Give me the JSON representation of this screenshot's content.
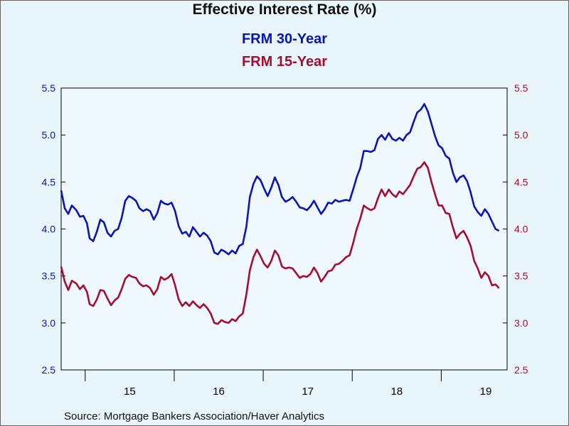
{
  "chart_data": {
    "type": "line",
    "title": "Effective Interest Rate (%)",
    "source": "Source:  Mortgage Bankers Association/Haver Analytics",
    "y_left": {
      "ylim": [
        2.5,
        5.5
      ],
      "ticks": [
        "2.5",
        "3.0",
        "3.5",
        "4.0",
        "4.5",
        "5.0",
        "5.5"
      ]
    },
    "y_right": {
      "ylim": [
        2.5,
        5.5
      ],
      "ticks": [
        "2.5",
        "3.0",
        "3.5",
        "4.0",
        "4.5",
        "5.0",
        "5.5"
      ]
    },
    "x_ticks": [
      {
        "label": "15",
        "x": 2015.5
      },
      {
        "label": "16",
        "x": 2016.5
      },
      {
        "label": "17",
        "x": 2017.5
      },
      {
        "label": "18",
        "x": 2018.5
      },
      {
        "label": "19",
        "x": 2019.5
      }
    ],
    "x_year_boundaries": [
      2015,
      2016,
      2017,
      2018,
      2019
    ],
    "xlim": [
      2014.73,
      2019.74
    ],
    "grid": false,
    "series": [
      {
        "name": "FRM 30-Year",
        "color": "#0b14b4",
        "points": [
          [
            2014.73,
            4.41
          ],
          [
            2014.77,
            4.22
          ],
          [
            2014.81,
            4.16
          ],
          [
            2014.85,
            4.25
          ],
          [
            2014.9,
            4.2
          ],
          [
            2014.94,
            4.13
          ],
          [
            2014.98,
            4.14
          ],
          [
            2015.02,
            4.06
          ],
          [
            2015.05,
            3.9
          ],
          [
            2015.09,
            3.87
          ],
          [
            2015.13,
            3.97
          ],
          [
            2015.17,
            4.1
          ],
          [
            2015.21,
            4.07
          ],
          [
            2015.25,
            3.96
          ],
          [
            2015.29,
            3.92
          ],
          [
            2015.33,
            3.98
          ],
          [
            2015.37,
            4.0
          ],
          [
            2015.41,
            4.12
          ],
          [
            2015.45,
            4.3
          ],
          [
            2015.49,
            4.35
          ],
          [
            2015.53,
            4.33
          ],
          [
            2015.57,
            4.3
          ],
          [
            2015.61,
            4.22
          ],
          [
            2015.65,
            4.19
          ],
          [
            2015.69,
            4.21
          ],
          [
            2015.73,
            4.19
          ],
          [
            2015.77,
            4.1
          ],
          [
            2015.81,
            4.17
          ],
          [
            2015.85,
            4.3
          ],
          [
            2015.89,
            4.27
          ],
          [
            2015.93,
            4.26
          ],
          [
            2015.97,
            4.28
          ],
          [
            2016.01,
            4.19
          ],
          [
            2016.05,
            4.03
          ],
          [
            2016.09,
            3.95
          ],
          [
            2016.13,
            3.97
          ],
          [
            2016.17,
            3.92
          ],
          [
            2016.21,
            4.02
          ],
          [
            2016.25,
            3.97
          ],
          [
            2016.29,
            3.92
          ],
          [
            2016.33,
            3.96
          ],
          [
            2016.37,
            3.93
          ],
          [
            2016.41,
            3.87
          ],
          [
            2016.45,
            3.75
          ],
          [
            2016.49,
            3.73
          ],
          [
            2016.53,
            3.78
          ],
          [
            2016.57,
            3.76
          ],
          [
            2016.61,
            3.73
          ],
          [
            2016.65,
            3.77
          ],
          [
            2016.69,
            3.74
          ],
          [
            2016.73,
            3.82
          ],
          [
            2016.77,
            3.84
          ],
          [
            2016.81,
            4.02
          ],
          [
            2016.85,
            4.34
          ],
          [
            2016.89,
            4.48
          ],
          [
            2016.93,
            4.56
          ],
          [
            2016.97,
            4.52
          ],
          [
            2017.01,
            4.43
          ],
          [
            2017.05,
            4.35
          ],
          [
            2017.09,
            4.44
          ],
          [
            2017.13,
            4.55
          ],
          [
            2017.17,
            4.47
          ],
          [
            2017.21,
            4.34
          ],
          [
            2017.25,
            4.29
          ],
          [
            2017.29,
            4.31
          ],
          [
            2017.33,
            4.34
          ],
          [
            2017.37,
            4.29
          ],
          [
            2017.41,
            4.23
          ],
          [
            2017.45,
            4.22
          ],
          [
            2017.49,
            4.2
          ],
          [
            2017.53,
            4.24
          ],
          [
            2017.57,
            4.3
          ],
          [
            2017.61,
            4.23
          ],
          [
            2017.65,
            4.16
          ],
          [
            2017.69,
            4.21
          ],
          [
            2017.73,
            4.28
          ],
          [
            2017.77,
            4.27
          ],
          [
            2017.81,
            4.31
          ],
          [
            2017.85,
            4.29
          ],
          [
            2017.89,
            4.3
          ],
          [
            2017.93,
            4.31
          ],
          [
            2017.97,
            4.3
          ],
          [
            2018.01,
            4.42
          ],
          [
            2018.05,
            4.55
          ],
          [
            2018.09,
            4.65
          ],
          [
            2018.13,
            4.83
          ],
          [
            2018.17,
            4.83
          ],
          [
            2018.21,
            4.82
          ],
          [
            2018.25,
            4.84
          ],
          [
            2018.29,
            4.96
          ],
          [
            2018.33,
            5.0
          ],
          [
            2018.37,
            4.95
          ],
          [
            2018.41,
            5.02
          ],
          [
            2018.45,
            4.96
          ],
          [
            2018.49,
            4.94
          ],
          [
            2018.53,
            4.97
          ],
          [
            2018.57,
            4.94
          ],
          [
            2018.61,
            5.0
          ],
          [
            2018.65,
            5.03
          ],
          [
            2018.69,
            5.14
          ],
          [
            2018.73,
            5.24
          ],
          [
            2018.77,
            5.27
          ],
          [
            2018.81,
            5.33
          ],
          [
            2018.85,
            5.25
          ],
          [
            2018.89,
            5.12
          ],
          [
            2018.93,
            4.99
          ],
          [
            2018.97,
            4.89
          ],
          [
            2019.01,
            4.86
          ],
          [
            2019.05,
            4.78
          ],
          [
            2019.09,
            4.75
          ],
          [
            2019.13,
            4.6
          ],
          [
            2019.17,
            4.5
          ],
          [
            2019.21,
            4.55
          ],
          [
            2019.25,
            4.57
          ],
          [
            2019.29,
            4.51
          ],
          [
            2019.33,
            4.39
          ],
          [
            2019.37,
            4.24
          ],
          [
            2019.41,
            4.18
          ],
          [
            2019.45,
            4.14
          ],
          [
            2019.49,
            4.21
          ],
          [
            2019.53,
            4.16
          ],
          [
            2019.57,
            4.08
          ],
          [
            2019.61,
            4.0
          ],
          [
            2019.65,
            3.98
          ]
        ]
      },
      {
        "name": "FRM 15-Year",
        "color": "#a50d2f",
        "points": [
          [
            2014.73,
            3.6
          ],
          [
            2014.77,
            3.44
          ],
          [
            2014.81,
            3.35
          ],
          [
            2014.85,
            3.45
          ],
          [
            2014.9,
            3.42
          ],
          [
            2014.94,
            3.36
          ],
          [
            2014.98,
            3.4
          ],
          [
            2015.02,
            3.33
          ],
          [
            2015.05,
            3.2
          ],
          [
            2015.09,
            3.18
          ],
          [
            2015.13,
            3.25
          ],
          [
            2015.17,
            3.35
          ],
          [
            2015.21,
            3.34
          ],
          [
            2015.25,
            3.26
          ],
          [
            2015.29,
            3.19
          ],
          [
            2015.33,
            3.24
          ],
          [
            2015.37,
            3.27
          ],
          [
            2015.41,
            3.36
          ],
          [
            2015.45,
            3.47
          ],
          [
            2015.49,
            3.51
          ],
          [
            2015.53,
            3.49
          ],
          [
            2015.57,
            3.48
          ],
          [
            2015.61,
            3.42
          ],
          [
            2015.65,
            3.39
          ],
          [
            2015.69,
            3.4
          ],
          [
            2015.73,
            3.37
          ],
          [
            2015.77,
            3.3
          ],
          [
            2015.81,
            3.36
          ],
          [
            2015.85,
            3.49
          ],
          [
            2015.89,
            3.46
          ],
          [
            2015.93,
            3.48
          ],
          [
            2015.97,
            3.52
          ],
          [
            2016.01,
            3.4
          ],
          [
            2016.05,
            3.25
          ],
          [
            2016.09,
            3.18
          ],
          [
            2016.13,
            3.22
          ],
          [
            2016.17,
            3.18
          ],
          [
            2016.21,
            3.23
          ],
          [
            2016.25,
            3.19
          ],
          [
            2016.29,
            3.16
          ],
          [
            2016.33,
            3.2
          ],
          [
            2016.37,
            3.16
          ],
          [
            2016.41,
            3.1
          ],
          [
            2016.45,
            3.0
          ],
          [
            2016.49,
            2.99
          ],
          [
            2016.53,
            3.03
          ],
          [
            2016.57,
            3.01
          ],
          [
            2016.61,
            3.0
          ],
          [
            2016.65,
            3.04
          ],
          [
            2016.69,
            3.02
          ],
          [
            2016.73,
            3.07
          ],
          [
            2016.77,
            3.1
          ],
          [
            2016.81,
            3.3
          ],
          [
            2016.85,
            3.56
          ],
          [
            2016.89,
            3.7
          ],
          [
            2016.93,
            3.78
          ],
          [
            2016.97,
            3.71
          ],
          [
            2017.01,
            3.63
          ],
          [
            2017.05,
            3.59
          ],
          [
            2017.09,
            3.66
          ],
          [
            2017.13,
            3.77
          ],
          [
            2017.17,
            3.72
          ],
          [
            2017.21,
            3.6
          ],
          [
            2017.25,
            3.58
          ],
          [
            2017.29,
            3.59
          ],
          [
            2017.33,
            3.58
          ],
          [
            2017.37,
            3.53
          ],
          [
            2017.41,
            3.48
          ],
          [
            2017.45,
            3.5
          ],
          [
            2017.49,
            3.49
          ],
          [
            2017.53,
            3.52
          ],
          [
            2017.57,
            3.59
          ],
          [
            2017.61,
            3.53
          ],
          [
            2017.65,
            3.44
          ],
          [
            2017.69,
            3.49
          ],
          [
            2017.73,
            3.55
          ],
          [
            2017.77,
            3.56
          ],
          [
            2017.81,
            3.62
          ],
          [
            2017.85,
            3.63
          ],
          [
            2017.89,
            3.66
          ],
          [
            2017.93,
            3.7
          ],
          [
            2017.97,
            3.72
          ],
          [
            2018.01,
            3.85
          ],
          [
            2018.05,
            4.0
          ],
          [
            2018.09,
            4.11
          ],
          [
            2018.13,
            4.25
          ],
          [
            2018.17,
            4.22
          ],
          [
            2018.21,
            4.2
          ],
          [
            2018.25,
            4.22
          ],
          [
            2018.29,
            4.33
          ],
          [
            2018.33,
            4.42
          ],
          [
            2018.37,
            4.35
          ],
          [
            2018.41,
            4.42
          ],
          [
            2018.45,
            4.37
          ],
          [
            2018.49,
            4.34
          ],
          [
            2018.53,
            4.4
          ],
          [
            2018.57,
            4.37
          ],
          [
            2018.61,
            4.42
          ],
          [
            2018.65,
            4.47
          ],
          [
            2018.69,
            4.56
          ],
          [
            2018.73,
            4.64
          ],
          [
            2018.77,
            4.66
          ],
          [
            2018.81,
            4.71
          ],
          [
            2018.85,
            4.65
          ],
          [
            2018.89,
            4.5
          ],
          [
            2018.93,
            4.37
          ],
          [
            2018.97,
            4.25
          ],
          [
            2019.01,
            4.25
          ],
          [
            2019.05,
            4.17
          ],
          [
            2019.09,
            4.16
          ],
          [
            2019.13,
            4.02
          ],
          [
            2019.17,
            3.9
          ],
          [
            2019.21,
            3.95
          ],
          [
            2019.25,
            3.98
          ],
          [
            2019.29,
            3.91
          ],
          [
            2019.33,
            3.82
          ],
          [
            2019.37,
            3.66
          ],
          [
            2019.41,
            3.58
          ],
          [
            2019.45,
            3.48
          ],
          [
            2019.49,
            3.54
          ],
          [
            2019.53,
            3.5
          ],
          [
            2019.57,
            3.4
          ],
          [
            2019.61,
            3.41
          ],
          [
            2019.65,
            3.37
          ]
        ]
      }
    ]
  }
}
